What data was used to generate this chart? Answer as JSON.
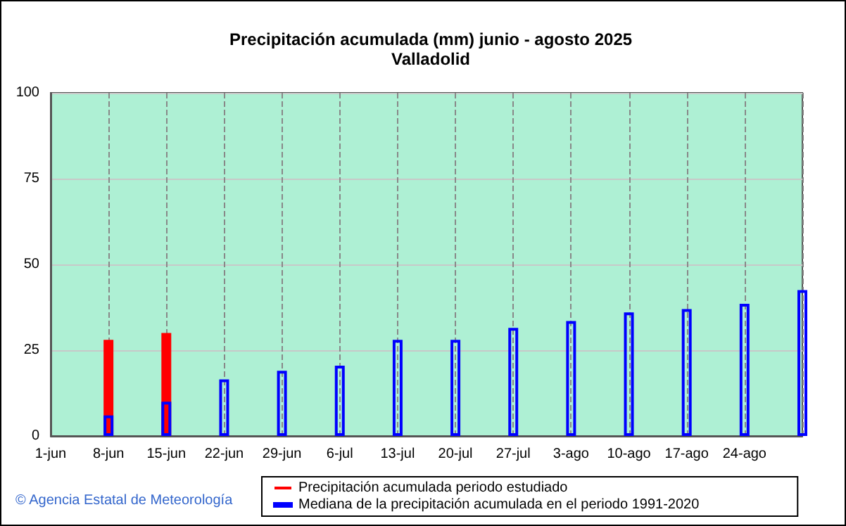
{
  "chart_data": {
    "type": "bar",
    "title": "Precipitación acumulada (mm) junio - agosto 2025",
    "subtitle": "Valladolid",
    "categories": [
      "1-jun",
      "8-jun",
      "15-jun",
      "22-jun",
      "29-jun",
      "6-jul",
      "13-jul",
      "20-jul",
      "27-jul",
      "3-ago",
      "10-ago",
      "17-ago",
      "24-ago",
      null
    ],
    "series": [
      {
        "name": "Precipitación acumulada periodo estudiado",
        "color": "#ff0000",
        "values": [
          null,
          28,
          30,
          null,
          null,
          null,
          null,
          null,
          null,
          null,
          null,
          null,
          null,
          null
        ]
      },
      {
        "name": "Mediana de la precipitación acumulada en el periodo 1991-2020",
        "color": "#0000ff",
        "values": [
          null,
          6,
          10,
          16.5,
          19,
          20.5,
          28,
          28,
          31.5,
          33.5,
          36,
          37,
          38.5,
          42.5
        ]
      }
    ],
    "ylim": [
      0,
      100
    ],
    "yticks": [
      0,
      25,
      50,
      75,
      100
    ],
    "grid": true,
    "legend": "bottom",
    "annotations": [
      "© Agencia Estatal de Meteorología"
    ]
  }
}
